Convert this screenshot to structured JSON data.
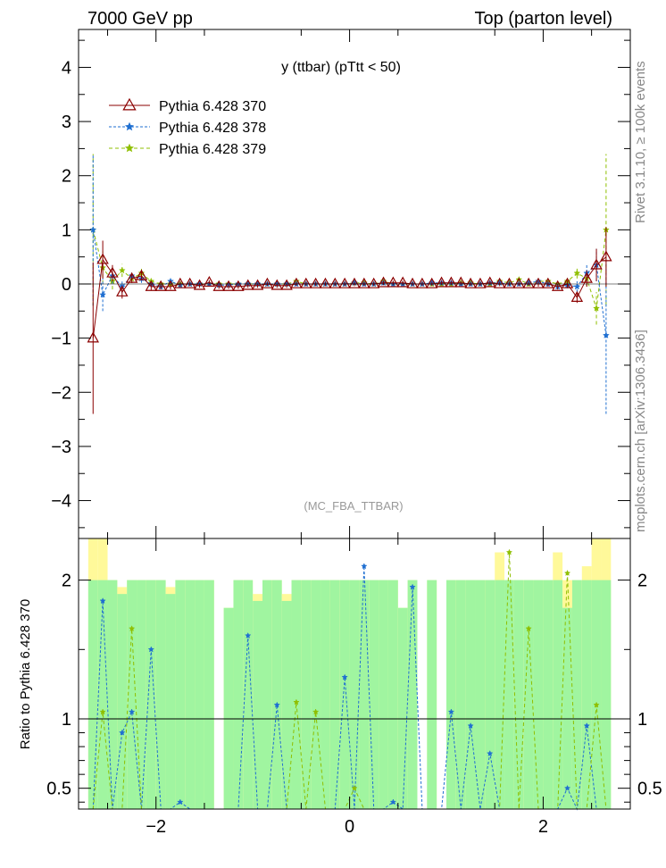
{
  "header": {
    "left": "7000 GeV pp",
    "right": "Top (parton level)"
  },
  "side_labels": {
    "rivet": "Rivet 3.1.10, ≥ 100k events",
    "mcplots": "mcplots.cern.ch [arXiv:1306.3436]"
  },
  "colors": {
    "s370": "#8b0000",
    "s378": "#1f6fd1",
    "s379": "#8fbf00",
    "band_green": "#a0f5a0",
    "band_yellow": "#fff99a",
    "watermark": "#999999"
  },
  "chart_data": [
    {
      "type": "line",
      "title": "y (ttbar) (pTtt < 50)",
      "watermark": "(MC_FBA_TTBAR)",
      "xlabel": "",
      "ylabel": "",
      "xlim": [
        -2.8,
        2.9
      ],
      "ylim": [
        -4.7,
        4.7
      ],
      "y_ticks": [
        -4,
        -3,
        -2,
        -1,
        0,
        1,
        2,
        3,
        4
      ],
      "legend_position": "top-left",
      "x": [
        -2.65,
        -2.55,
        -2.45,
        -2.35,
        -2.25,
        -2.15,
        -2.05,
        -1.95,
        -1.85,
        -1.75,
        -1.65,
        -1.55,
        -1.45,
        -1.35,
        -1.25,
        -1.15,
        -1.05,
        -0.95,
        -0.85,
        -0.75,
        -0.65,
        -0.55,
        -0.45,
        -0.35,
        -0.25,
        -0.15,
        -0.05,
        0.05,
        0.15,
        0.25,
        0.35,
        0.45,
        0.55,
        0.65,
        0.75,
        0.85,
        0.95,
        1.05,
        1.15,
        1.25,
        1.35,
        1.45,
        1.55,
        1.65,
        1.75,
        1.85,
        1.95,
        2.05,
        2.15,
        2.25,
        2.35,
        2.45,
        2.55,
        2.65
      ],
      "series": [
        {
          "name": "Pythia 6.428 370",
          "marker": "open-triangle",
          "line": "solid",
          "values": [
            -1.0,
            0.45,
            0.2,
            -0.15,
            0.1,
            0.15,
            -0.05,
            -0.05,
            -0.05,
            0.0,
            0.0,
            -0.03,
            0.03,
            -0.05,
            -0.05,
            -0.05,
            -0.03,
            -0.03,
            0.0,
            -0.03,
            -0.03,
            0.0,
            0.0,
            0.0,
            0.0,
            0.0,
            0.0,
            0.0,
            0.0,
            0.0,
            0.02,
            0.02,
            0.02,
            0.0,
            0.0,
            0.0,
            0.02,
            0.02,
            0.02,
            0.0,
            0.0,
            0.02,
            0.0,
            0.0,
            0.0,
            0.0,
            0.0,
            0.0,
            -0.05,
            0.0,
            -0.25,
            0.1,
            0.35,
            0.5
          ],
          "errors": [
            1.4,
            0.35,
            0.15,
            0.12,
            0.08,
            0.08,
            0.06,
            0.05,
            0.05,
            0.05,
            0.04,
            0.04,
            0.04,
            0.04,
            0.04,
            0.04,
            0.04,
            0.04,
            0.04,
            0.04,
            0.04,
            0.04,
            0.04,
            0.04,
            0.04,
            0.04,
            0.04,
            0.04,
            0.04,
            0.04,
            0.04,
            0.04,
            0.04,
            0.04,
            0.04,
            0.04,
            0.04,
            0.04,
            0.04,
            0.04,
            0.04,
            0.04,
            0.04,
            0.04,
            0.04,
            0.04,
            0.05,
            0.05,
            0.05,
            0.06,
            0.1,
            0.15,
            0.3,
            0.55
          ]
        },
        {
          "name": "Pythia 6.428 378",
          "marker": "star",
          "line": "dotted",
          "values": [
            1.0,
            -0.2,
            0.15,
            -0.05,
            0.15,
            0.1,
            0.0,
            -0.05,
            0.05,
            -0.02,
            0.0,
            0.0,
            0.0,
            -0.02,
            -0.02,
            0.0,
            0.0,
            0.0,
            0.0,
            0.0,
            0.0,
            0.0,
            0.0,
            0.0,
            0.0,
            0.0,
            0.0,
            0.02,
            0.0,
            0.0,
            0.02,
            0.0,
            0.0,
            0.0,
            0.0,
            0.02,
            0.02,
            0.02,
            0.0,
            0.0,
            0.0,
            0.02,
            0.02,
            0.0,
            0.0,
            0.02,
            0.05,
            0.0,
            -0.05,
            -0.02,
            -0.05,
            0.2,
            0.35,
            -0.95
          ],
          "errors": [
            1.4,
            0.3,
            0.15,
            0.12,
            0.08,
            0.08,
            0.06,
            0.05,
            0.05,
            0.05,
            0.04,
            0.04,
            0.04,
            0.04,
            0.04,
            0.04,
            0.04,
            0.04,
            0.04,
            0.04,
            0.04,
            0.04,
            0.04,
            0.04,
            0.04,
            0.04,
            0.04,
            0.04,
            0.04,
            0.04,
            0.04,
            0.04,
            0.04,
            0.04,
            0.04,
            0.04,
            0.04,
            0.04,
            0.04,
            0.04,
            0.04,
            0.04,
            0.04,
            0.04,
            0.04,
            0.04,
            0.05,
            0.05,
            0.05,
            0.06,
            0.1,
            0.15,
            0.3,
            1.45
          ]
        },
        {
          "name": "Pythia 6.428 379",
          "marker": "star",
          "line": "dashed",
          "values": [
            1.0,
            0.3,
            0.05,
            0.25,
            0.1,
            0.2,
            0.05,
            0.0,
            0.0,
            0.0,
            0.0,
            0.0,
            0.0,
            0.0,
            0.0,
            0.0,
            0.0,
            0.0,
            0.0,
            0.0,
            0.0,
            0.05,
            0.0,
            0.0,
            0.0,
            0.0,
            0.0,
            0.02,
            0.02,
            0.0,
            0.05,
            0.0,
            0.0,
            0.0,
            0.0,
            0.0,
            0.0,
            0.0,
            0.02,
            0.02,
            0.0,
            0.0,
            0.05,
            0.02,
            0.08,
            0.0,
            0.05,
            0.05,
            0.0,
            0.05,
            0.2,
            0.1,
            -0.45,
            1.0
          ],
          "errors": [
            1.4,
            0.3,
            0.15,
            0.12,
            0.08,
            0.08,
            0.06,
            0.05,
            0.05,
            0.05,
            0.04,
            0.04,
            0.04,
            0.04,
            0.04,
            0.04,
            0.04,
            0.04,
            0.04,
            0.04,
            0.04,
            0.04,
            0.04,
            0.04,
            0.04,
            0.04,
            0.04,
            0.04,
            0.04,
            0.04,
            0.04,
            0.04,
            0.04,
            0.04,
            0.04,
            0.04,
            0.04,
            0.04,
            0.04,
            0.04,
            0.04,
            0.04,
            0.04,
            0.04,
            0.04,
            0.04,
            0.05,
            0.05,
            0.05,
            0.06,
            0.1,
            0.15,
            0.3,
            1.4
          ]
        }
      ]
    },
    {
      "type": "line",
      "ylabel": "Ratio to Pythia 6.428 370",
      "xlabel": "",
      "xlim": [
        -2.8,
        2.9
      ],
      "ylim": [
        0.35,
        2.3
      ],
      "y_ticks": [
        0.5,
        1,
        2
      ],
      "x_ticks": [
        -2,
        0,
        2
      ],
      "reference_line": 1,
      "bands": {
        "green_half_width": [
          1.0,
          1.0,
          1.0,
          0.9,
          1.0,
          1.0,
          1.0,
          1.0,
          0.9,
          1.0,
          1.0,
          1.0,
          1.0,
          0.0,
          0.8,
          1.0,
          1.0,
          0.85,
          1.0,
          1.0,
          0.85,
          1.0,
          1.0,
          1.0,
          1.0,
          1.0,
          1.0,
          1.0,
          1.0,
          1.0,
          1.0,
          1.0,
          0.8,
          1.0,
          0.0,
          1.0,
          0.0,
          1.0,
          1.0,
          1.0,
          1.0,
          1.0,
          1.0,
          1.0,
          1.0,
          1.0,
          1.0,
          1.0,
          1.0,
          0.8,
          1.0,
          1.0,
          1.0,
          1.0
        ],
        "yellow_half_width": [
          1.3,
          1.3,
          1.0,
          0.95,
          1.0,
          1.0,
          1.0,
          1.0,
          0.95,
          1.0,
          1.0,
          1.0,
          1.0,
          0.0,
          0.8,
          1.0,
          1.0,
          0.9,
          1.0,
          1.0,
          0.9,
          1.0,
          1.0,
          1.0,
          1.0,
          1.0,
          1.0,
          1.0,
          1.0,
          1.0,
          1.0,
          1.0,
          0.8,
          1.0,
          0.0,
          1.0,
          0.0,
          1.0,
          1.0,
          1.0,
          1.0,
          1.0,
          1.2,
          1.0,
          1.0,
          1.0,
          1.0,
          1.0,
          1.2,
          1.0,
          1.0,
          1.1,
          1.3,
          1.3
        ]
      },
      "series": [
        {
          "name": "Pythia 6.428 378",
          "values": [
            0.3,
            1.85,
            0.3,
            0.9,
            1.05,
            0.3,
            1.5,
            0.3,
            0.3,
            0.4,
            0.3,
            0.3,
            0.3,
            0.3,
            0.35,
            0.3,
            1.6,
            0.3,
            0.3,
            1.1,
            0.3,
            0.3,
            0.3,
            0.3,
            0.3,
            0.3,
            1.3,
            0.3,
            2.1,
            0.3,
            0.3,
            0.4,
            0.3,
            1.95,
            0.3,
            0.3,
            0.3,
            1.05,
            0.3,
            0.95,
            0.3,
            0.75,
            0.3,
            0.3,
            0.3,
            0.3,
            0.3,
            0.3,
            0.3,
            0.5,
            0.3,
            0.95,
            0.3,
            0.3
          ]
        },
        {
          "name": "Pythia 6.428 379",
          "values": [
            0.3,
            1.05,
            0.3,
            0.3,
            1.65,
            0.3,
            0.3,
            0.3,
            0.3,
            0.3,
            0.3,
            0.3,
            0.3,
            0.3,
            0.3,
            0.3,
            0.3,
            0.3,
            0.3,
            0.3,
            0.3,
            1.12,
            0.3,
            1.05,
            0.3,
            0.3,
            0.3,
            0.5,
            0.3,
            0.3,
            0.3,
            0.3,
            0.3,
            0.3,
            0.3,
            0.3,
            0.3,
            0.3,
            0.3,
            0.3,
            0.3,
            0.3,
            0.3,
            2.2,
            0.3,
            1.65,
            0.3,
            0.3,
            0.3,
            2.05,
            0.3,
            0.3,
            1.1,
            0.3
          ]
        }
      ]
    }
  ]
}
